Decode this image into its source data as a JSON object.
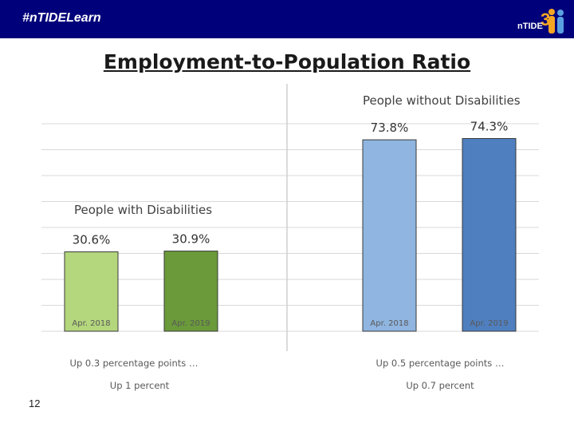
{
  "header": {
    "hashtag": "#nTIDELearn",
    "logo_text": "nTIDE",
    "logo_number": "3"
  },
  "slide": {
    "title": "Employment-to-Population Ratio",
    "page_number": "12"
  },
  "colors": {
    "bar_bg": "#00007a",
    "pwd_2018": "#b4d67d",
    "pwd_2019": "#6a9a3a",
    "pwod_2018": "#8fb5e0",
    "pwod_2019": "#4f7fbf"
  },
  "chart_data": [
    {
      "type": "bar",
      "title": "People with Disabilities",
      "categories": [
        "Apr. 2018",
        "Apr. 2019"
      ],
      "values": [
        30.6,
        30.9
      ],
      "value_labels": [
        "30.6%",
        "30.9%"
      ],
      "colors": [
        "#b4d67d",
        "#6a9a3a"
      ],
      "notes": [
        "Up 0.3 percentage points …",
        "Up 1 percent"
      ],
      "ylim": [
        0,
        80
      ],
      "grid": true
    },
    {
      "type": "bar",
      "title": "People without Disabilities",
      "categories": [
        "Apr. 2018",
        "Apr. 2019"
      ],
      "values": [
        73.8,
        74.3
      ],
      "value_labels": [
        "73.8%",
        "74.3%"
      ],
      "colors": [
        "#8fb5e0",
        "#4f7fbf"
      ],
      "notes": [
        "Up 0.5 percentage points …",
        "Up 0.7 percent"
      ],
      "ylim": [
        0,
        80
      ],
      "grid": true
    }
  ]
}
